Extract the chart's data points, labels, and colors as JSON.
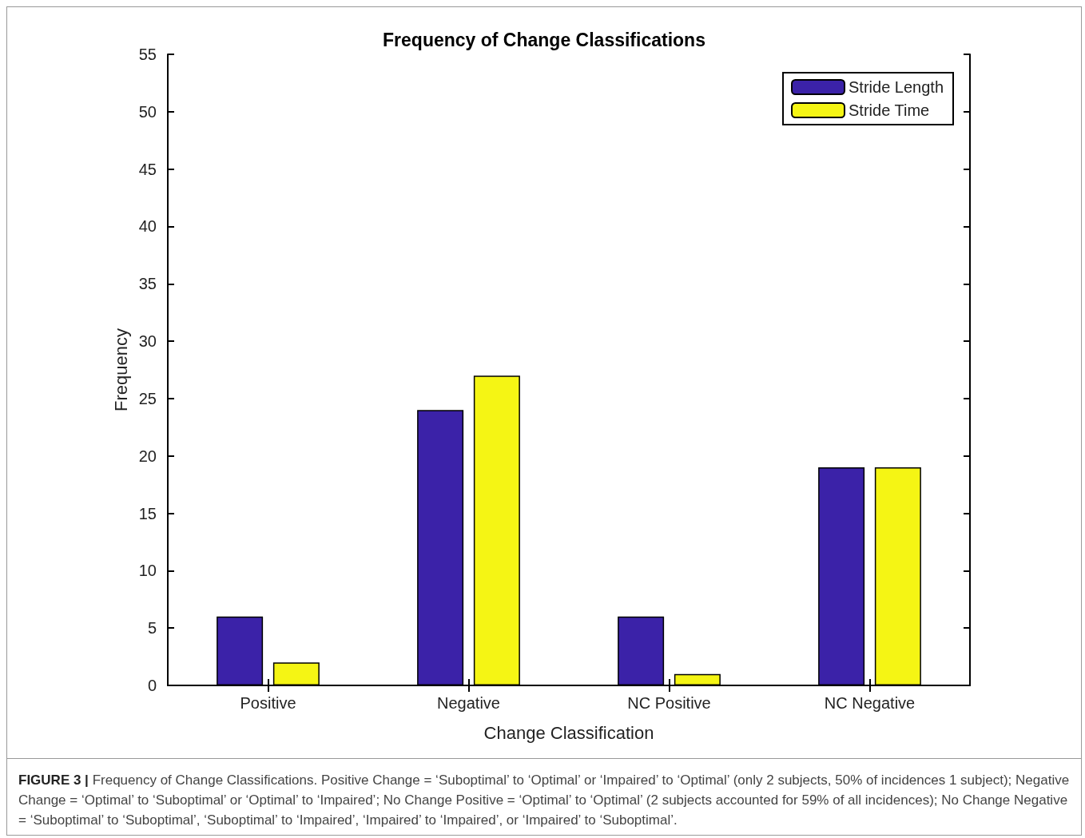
{
  "chart_data": {
    "type": "bar",
    "title": "Frequency of Change Classifications",
    "xlabel": "Change Classification",
    "ylabel": "Frequency",
    "categories": [
      "Positive",
      "Negative",
      "NC Positive",
      "NC Negative"
    ],
    "series": [
      {
        "name": "Stride Length",
        "color": "#3b22a8",
        "values": [
          6,
          24,
          6,
          19
        ]
      },
      {
        "name": "Stride Time",
        "color": "#f5f514",
        "values": [
          2,
          27,
          1,
          19
        ]
      }
    ],
    "ylim": [
      0,
      55
    ],
    "yticks": [
      0,
      5,
      10,
      15,
      20,
      25,
      30,
      35,
      40,
      45,
      50,
      55
    ],
    "grid": false,
    "legend": "top right",
    "annotations": [
      "FIGURE 3 |",
      "Frequency of Change Classifications. Positive Change = ‘Suboptimal’ to ‘Optimal’ or ‘Impaired’ to ‘Optimal’ (only 2 subjects, 50% of incidences 1 subject); Negative Change = ‘Optimal’ to ‘Suboptimal’ or ‘Optimal’ to ‘Impaired’; No Change Positive = ‘Optimal’ to ‘Optimal’ (2 subjects accounted for 59% of all incidences); No Change Negative = ‘Suboptimal’ to ‘Suboptimal’, ‘Suboptimal’ to ‘Impaired’, ‘Impaired’ to ‘Impaired’, or ‘Impaired’ to ‘Suboptimal’."
    ]
  }
}
